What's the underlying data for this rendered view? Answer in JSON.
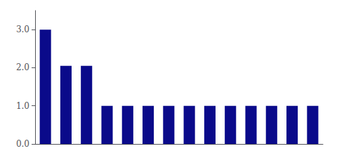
{
  "chart_data": {
    "type": "bar",
    "categories": [
      null,
      null,
      null,
      null,
      null,
      null,
      null,
      null,
      null,
      null,
      null,
      null,
      null,
      null
    ],
    "values": [
      3.0,
      2.05,
      2.05,
      1.0,
      1.0,
      1.0,
      1.0,
      1.0,
      1.0,
      1.0,
      1.0,
      1.0,
      1.0,
      1.0
    ],
    "color": "#0a0a8a",
    "ylim": [
      0,
      3.5
    ],
    "yticks": [
      {
        "value": 0.0,
        "label": "0.0"
      },
      {
        "value": 1.0,
        "label": "1.0"
      },
      {
        "value": 2.0,
        "label": "2.0"
      },
      {
        "value": 3.0,
        "label": "3.0"
      }
    ],
    "grid": false,
    "tick_labels": "y"
  }
}
